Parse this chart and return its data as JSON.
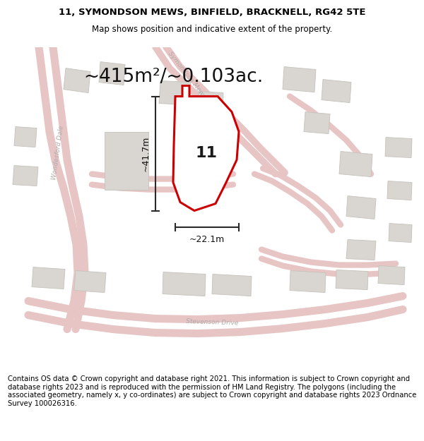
{
  "title_line1": "11, SYMONDSON MEWS, BINFIELD, BRACKNELL, RG42 5TE",
  "title_line2": "Map shows position and indicative extent of the property.",
  "area_text": "~415m²/~0.103ac.",
  "width_label": "~22.1m",
  "height_label": "~41.7m",
  "plot_number": "11",
  "footer_text": "Contains OS data © Crown copyright and database right 2021. This information is subject to Crown copyright and database rights 2023 and is reproduced with the permission of HM Land Registry. The polygons (including the associated geometry, namely x, y co-ordinates) are subject to Crown copyright and database rights 2023 Ordnance Survey 100026316.",
  "map_bg": "#f2f0ed",
  "building_color": "#d9d6d1",
  "building_edge": "#c5c2bc",
  "road_color": "#e8c5c5",
  "plot_edge_color": "#cc0000",
  "plot_fill_color": "#ffffff",
  "dim_line_color": "#2a2a2a",
  "road_label_color": "#b0aaaa",
  "title_fontsize": 9.5,
  "subtitle_fontsize": 8.5,
  "area_fontsize": 19,
  "dim_fontsize": 9,
  "plot_num_fontsize": 16,
  "footer_fontsize": 7.2,
  "title_bg": "#ffffff",
  "footer_bg": "#ffffff"
}
